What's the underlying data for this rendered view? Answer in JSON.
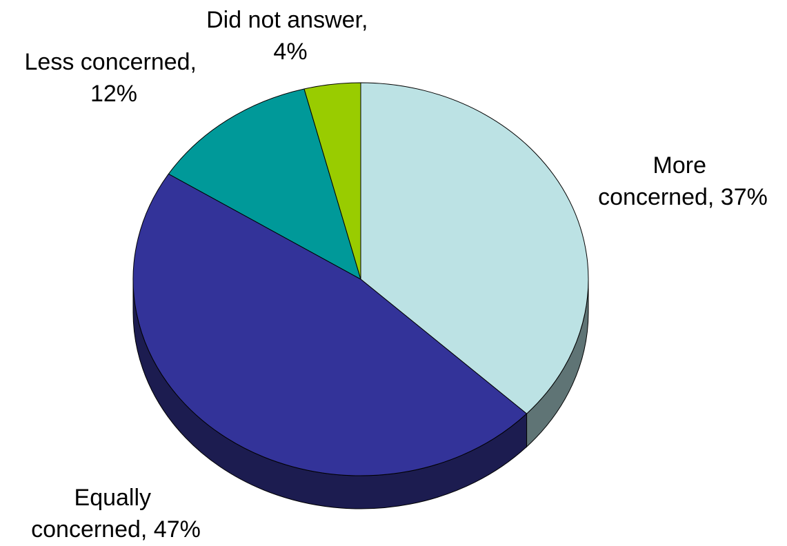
{
  "chart_data": {
    "type": "pie",
    "style": "3d",
    "slices": [
      {
        "label_lines": [
          "More",
          "concerned, 37%"
        ],
        "value": 37,
        "color": "#bce2e4",
        "side_color": "#5f7475"
      },
      {
        "label_lines": [
          "Equally",
          "concerned, 47%"
        ],
        "value": 47,
        "color": "#333399",
        "side_color": "#1c1c50"
      },
      {
        "label_lines": [
          "Less concerned,",
          "12%"
        ],
        "value": 12,
        "color": "#009999",
        "side_color": "#005252"
      },
      {
        "label_lines": [
          "Did not answer,",
          "4%"
        ],
        "value": 4,
        "color": "#99cc00",
        "side_color": "#547000"
      }
    ]
  }
}
